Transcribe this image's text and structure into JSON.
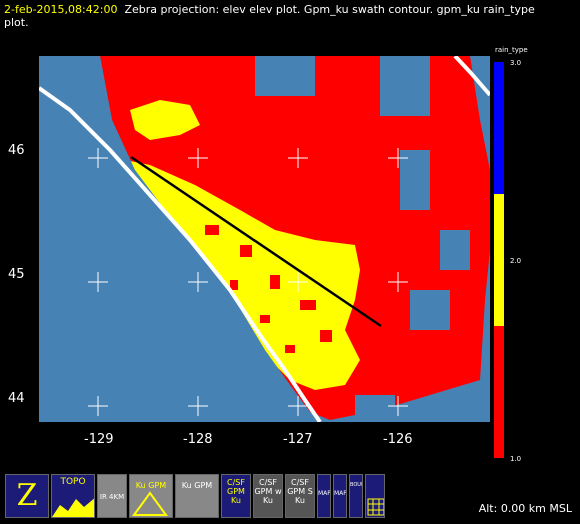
{
  "header": {
    "timestamp": "2-feb-2015,08:42:00",
    "description": "Zebra projection: elev elev  plot.  Gpm_ku swath contour.  gpm_ku rain_type",
    "description2": "plot."
  },
  "map": {
    "x_ticks": [
      "-129",
      "-128",
      "-127",
      "-126"
    ],
    "y_ticks": [
      "46",
      "45",
      "44"
    ],
    "colors": {
      "ocean": "#4682b4",
      "coast": "#ffffff",
      "low": "#ff0000",
      "mid": "#ffff00",
      "high": "#0000ff"
    }
  },
  "colorbar": {
    "title": "rain_type",
    "ticks": [
      "3.0",
      "2.0",
      "1.0"
    ]
  },
  "toolbar": {
    "buttons": [
      {
        "name": "zebra-logo-button",
        "label": "Z"
      },
      {
        "name": "topo-button",
        "label": "TOPO"
      },
      {
        "name": "ir-4km-button",
        "label": "IR 4KM"
      },
      {
        "name": "ku-gpm-button",
        "label": "Ku GPM"
      },
      {
        "name": "ku-gpm-alt-button",
        "label": "Ku GPM"
      },
      {
        "name": "csf-gpm-ku-button",
        "label": "C/SF GPM Ku"
      },
      {
        "name": "csf-gpm-w-ku-button",
        "label": "C/SF GPM w Ku"
      },
      {
        "name": "csf-gpm-s-ku-button",
        "label": "C/SF GPM S Ku"
      },
      {
        "name": "map-button",
        "label": "MAP"
      },
      {
        "name": "map-alt-button",
        "label": "MAP"
      },
      {
        "name": "bounds-button",
        "label": "BOUNDS"
      },
      {
        "name": "grid-button",
        "label": ""
      }
    ]
  },
  "status": {
    "altitude": "Alt: 0.00 km MSL"
  }
}
